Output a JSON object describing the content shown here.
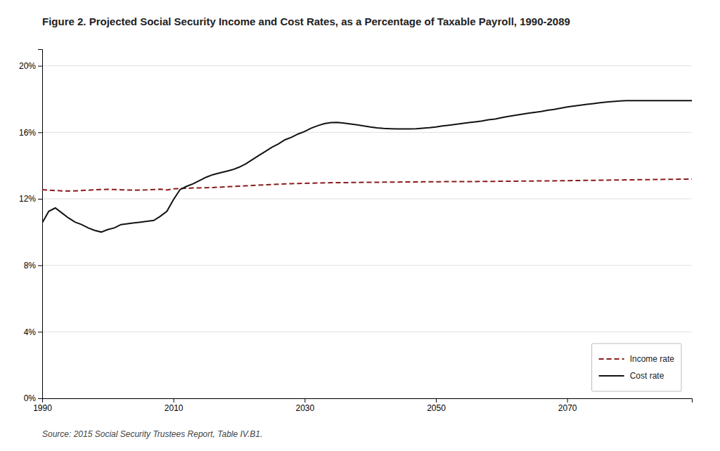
{
  "chart_data": {
    "type": "line",
    "title": "Figure 2. Projected Social Security Income and Cost Rates, as a Percentage of Taxable Payroll, 1990-2089",
    "annotations": [
      "Source: 2015 Social Security Trustees Report, Table IV.B1."
    ],
    "x": [
      1990,
      1991,
      1992,
      1993,
      1994,
      1995,
      1996,
      1997,
      1998,
      1999,
      2000,
      2001,
      2002,
      2003,
      2004,
      2005,
      2006,
      2007,
      2008,
      2009,
      2010,
      2011,
      2012,
      2013,
      2014,
      2015,
      2016,
      2017,
      2018,
      2019,
      2020,
      2021,
      2022,
      2023,
      2024,
      2025,
      2026,
      2027,
      2028,
      2029,
      2030,
      2031,
      2032,
      2033,
      2034,
      2035,
      2036,
      2037,
      2038,
      2039,
      2040,
      2041,
      2042,
      2043,
      2044,
      2045,
      2046,
      2047,
      2048,
      2049,
      2050,
      2051,
      2052,
      2053,
      2054,
      2055,
      2056,
      2057,
      2058,
      2059,
      2060,
      2061,
      2062,
      2063,
      2064,
      2065,
      2066,
      2067,
      2068,
      2069,
      2070,
      2071,
      2072,
      2073,
      2074,
      2075,
      2076,
      2077,
      2078,
      2079,
      2080,
      2081,
      2082,
      2083,
      2084,
      2085,
      2086,
      2087,
      2088,
      2089
    ],
    "series": [
      {
        "name": "Income rate",
        "color": "#8b1a1a",
        "line_style": "dashed",
        "values": [
          12.55,
          12.52,
          12.5,
          12.48,
          12.47,
          12.48,
          12.5,
          12.52,
          12.54,
          12.56,
          12.57,
          12.56,
          12.54,
          12.53,
          12.52,
          12.53,
          12.54,
          12.56,
          12.58,
          12.53,
          12.6,
          12.62,
          12.63,
          12.65,
          12.66,
          12.67,
          12.68,
          12.7,
          12.72,
          12.74,
          12.76,
          12.78,
          12.8,
          12.82,
          12.84,
          12.86,
          12.88,
          12.9,
          12.91,
          12.92,
          12.93,
          12.94,
          12.95,
          12.96,
          12.97,
          12.97,
          12.97,
          12.98,
          12.98,
          12.99,
          12.99,
          12.99,
          13.0,
          13.0,
          13.0,
          13.01,
          13.01,
          13.01,
          13.02,
          13.02,
          13.02,
          13.03,
          13.03,
          13.03,
          13.04,
          13.04,
          13.04,
          13.05,
          13.05,
          13.05,
          13.06,
          13.06,
          13.06,
          13.07,
          13.07,
          13.07,
          13.08,
          13.08,
          13.08,
          13.09,
          13.09,
          13.1,
          13.1,
          13.11,
          13.11,
          13.12,
          13.12,
          13.13,
          13.13,
          13.14,
          13.14,
          13.15,
          13.15,
          13.16,
          13.16,
          13.17,
          13.17,
          13.18,
          13.18,
          13.19
        ]
      },
      {
        "name": "Cost rate",
        "color": "#111111",
        "line_style": "solid",
        "values": [
          10.55,
          11.25,
          11.45,
          11.15,
          10.85,
          10.6,
          10.45,
          10.25,
          10.1,
          10.0,
          10.15,
          10.25,
          10.45,
          10.5,
          10.55,
          10.6,
          10.65,
          10.7,
          10.95,
          11.25,
          11.95,
          12.55,
          12.75,
          12.9,
          13.1,
          13.3,
          13.45,
          13.55,
          13.65,
          13.75,
          13.9,
          14.1,
          14.35,
          14.6,
          14.85,
          15.1,
          15.3,
          15.55,
          15.7,
          15.9,
          16.05,
          16.25,
          16.4,
          16.52,
          16.58,
          16.6,
          16.55,
          16.5,
          16.45,
          16.38,
          16.32,
          16.27,
          16.24,
          16.22,
          16.2,
          16.2,
          16.2,
          16.22,
          16.25,
          16.28,
          16.32,
          16.38,
          16.43,
          16.48,
          16.53,
          16.58,
          16.63,
          16.68,
          16.75,
          16.8,
          16.88,
          16.95,
          17.02,
          17.08,
          17.14,
          17.2,
          17.25,
          17.32,
          17.38,
          17.45,
          17.52,
          17.58,
          17.63,
          17.68,
          17.73,
          17.78,
          17.82,
          17.85,
          17.88,
          17.9,
          17.9,
          17.9,
          17.9,
          17.9,
          17.9,
          17.9,
          17.9,
          17.9,
          17.9,
          17.9
        ]
      }
    ],
    "xlim": [
      1990,
      2089
    ],
    "xticks": [
      1990,
      2010,
      2030,
      2050,
      2070
    ],
    "ylim": [
      0,
      21
    ],
    "yticks": [
      {
        "value": 0,
        "label": "0%"
      },
      {
        "value": 4,
        "label": "4%"
      },
      {
        "value": 8,
        "label": "8%"
      },
      {
        "value": 12,
        "label": "12%"
      },
      {
        "value": 16,
        "label": "16%"
      },
      {
        "value": 20,
        "label": "20%"
      }
    ],
    "grid": "y",
    "legend": "lower right"
  }
}
